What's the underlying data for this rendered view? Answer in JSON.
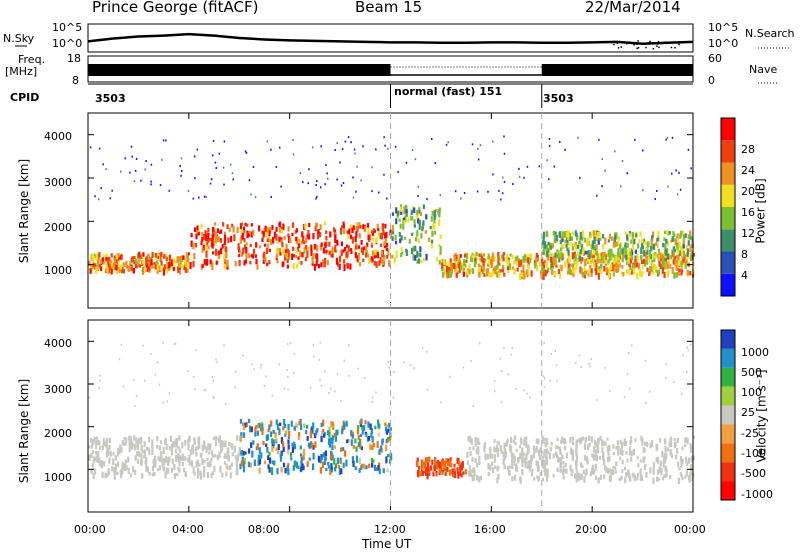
{
  "header": {
    "station": "Prince George (fitACF)",
    "beam": "Beam 15",
    "date": "22/Mar/2014"
  },
  "noise_panel": {
    "left_label": "N.Sky",
    "right_label": "N.Search",
    "left_ticks": [
      "10^5",
      "10^0"
    ],
    "right_ticks": [
      "10^5",
      "10^0"
    ]
  },
  "freq_panel": {
    "left_label_1": "Freq.",
    "left_label_2": "[MHz]",
    "left_ticks": [
      "18",
      "8"
    ],
    "right_label": "Nave",
    "right_ticks": [
      "60",
      "0"
    ]
  },
  "cpid_panel": {
    "label": "CPID",
    "segments": [
      "3503",
      "normal (fast) 151",
      "3503"
    ]
  },
  "axes": {
    "ylabel": "Slant Range [km]",
    "xlabel": "Time UT",
    "yticks": [
      "1000",
      "2000",
      "3000",
      "4000"
    ],
    "xticks": [
      "00:00",
      "04:00",
      "08:00",
      "12:00",
      "16:00",
      "20:00",
      "00:00"
    ]
  },
  "power_colorbar": {
    "label": "Power [dB]",
    "ticks": [
      "4",
      "8",
      "12",
      "16",
      "20",
      "24",
      "28"
    ],
    "colors": [
      "#1010ff",
      "#2a50b8",
      "#3f8f6f",
      "#7cc030",
      "#f0e020",
      "#f09020",
      "#f04010",
      "#ff0000"
    ]
  },
  "velocity_colorbar": {
    "label": "Velocity [m s⁻¹]",
    "ticks": [
      "1000",
      "500",
      "100",
      "25",
      "-25",
      "-100",
      "-500",
      "-1000"
    ],
    "colors": [
      "#2040c0",
      "#2090c8",
      "#30b040",
      "#a0d040",
      "#c8c8c0",
      "#f0a040",
      "#f07010",
      "#f03010",
      "#ff0000"
    ]
  },
  "chart_data": [
    {
      "type": "line",
      "title": "",
      "xlabel": "",
      "ylabel": "N.Sky",
      "x_range": [
        "00:00",
        "24:00"
      ],
      "series": [
        {
          "name": "N.Sky",
          "x": [
            0,
            1,
            2,
            3,
            4,
            5,
            6,
            7,
            8,
            9,
            10,
            11,
            12,
            13,
            14,
            15,
            16,
            17,
            18,
            19,
            20,
            21,
            22,
            23,
            24
          ],
          "values_log10": [
            1.8,
            2.4,
            2.8,
            3.0,
            3.3,
            3.0,
            2.5,
            2.2,
            2.0,
            1.9,
            1.8,
            1.7,
            1.6,
            1.6,
            1.5,
            1.5,
            1.6,
            1.6,
            1.5,
            1.5,
            1.6,
            1.7,
            1.3,
            1.5,
            1.7
          ]
        }
      ],
      "ylim_log10": [
        0,
        5
      ]
    },
    {
      "type": "line",
      "title": "",
      "ylabel": "Freq. [MHz]",
      "x_range": [
        "00:00",
        "24:00"
      ],
      "series": [
        {
          "name": "Nave",
          "description_values": "dense bars 00:00-12:00 and 18:00-24:00; dotted during 12:00-18:00"
        }
      ],
      "ylim": [
        8,
        18
      ]
    },
    {
      "type": "heatmap",
      "title": "",
      "ylabel": "Slant Range [km]",
      "xlabel": "",
      "x_range": [
        "00:00",
        "24:00"
      ],
      "ylim": [
        0,
        4500
      ],
      "colorbar": "Power [dB]",
      "colorbar_range": [
        0,
        30
      ],
      "features": [
        {
          "t0": 0,
          "t1": 4,
          "range_km": [
            900,
            1300
          ],
          "power_db": 22
        },
        {
          "t0": 4,
          "t1": 12,
          "range_km": [
            1000,
            2000
          ],
          "power_db": 26
        },
        {
          "t0": 12,
          "t1": 14,
          "range_km": [
            1100,
            2400
          ],
          "power_db": 12
        },
        {
          "t0": 14,
          "t1": 24,
          "range_km": [
            800,
            1300
          ],
          "power_db": 20
        },
        {
          "t0": 18,
          "t1": 24,
          "range_km": [
            1200,
            1800
          ],
          "power_db": 14
        }
      ]
    },
    {
      "type": "heatmap",
      "title": "",
      "ylabel": "Slant Range [km]",
      "xlabel": "Time UT",
      "x_range": [
        "00:00",
        "24:00"
      ],
      "ylim": [
        0,
        4500
      ],
      "colorbar": "Velocity [m s-1]",
      "colorbar_range": [
        -1000,
        1000
      ],
      "features": [
        {
          "t0": 0,
          "t1": 6,
          "range_km": [
            900,
            1800
          ],
          "velocity": 0
        },
        {
          "t0": 6,
          "t1": 12,
          "range_km": [
            1000,
            2200
          ],
          "velocity": 200
        },
        {
          "t0": 13,
          "t1": 15,
          "range_km": [
            900,
            1300
          ],
          "velocity": -500
        },
        {
          "t0": 15,
          "t1": 24,
          "range_km": [
            800,
            1800
          ],
          "velocity": 0
        }
      ]
    }
  ]
}
